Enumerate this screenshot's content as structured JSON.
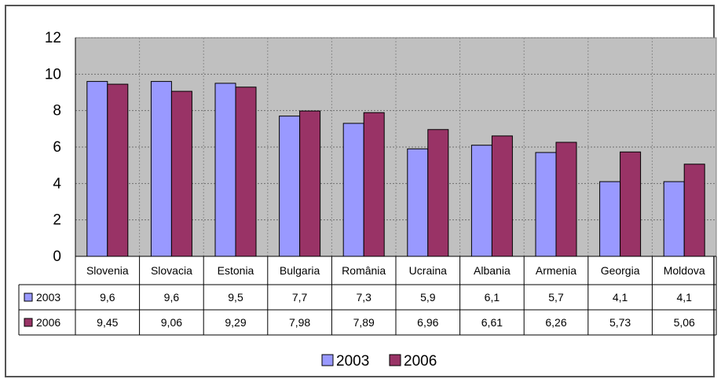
{
  "chart_data": {
    "type": "bar",
    "title": "",
    "xlabel": "",
    "ylabel": "",
    "ylim": [
      0,
      12
    ],
    "yticks": [
      0,
      2,
      4,
      6,
      8,
      10,
      12
    ],
    "grid": true,
    "legend_position": "bottom",
    "categories": [
      "Slovenia",
      "Slovacia",
      "Estonia",
      "Bulgaria",
      "România",
      "Ucraina",
      "Albania",
      "Armenia",
      "Georgia",
      "Moldova"
    ],
    "series": [
      {
        "name": "2003",
        "color": "#9999ff",
        "values": [
          9.6,
          9.6,
          9.5,
          7.7,
          7.3,
          5.9,
          6.1,
          5.7,
          4.1,
          4.1
        ],
        "labels": [
          "9,6",
          "9,6",
          "9,5",
          "7,7",
          "7,3",
          "5,9",
          "6,1",
          "5,7",
          "4,1",
          "4,1"
        ]
      },
      {
        "name": "2006",
        "color": "#993366",
        "values": [
          9.45,
          9.06,
          9.29,
          7.98,
          7.89,
          6.96,
          6.61,
          6.26,
          5.73,
          5.06
        ],
        "labels": [
          "9,45",
          "9,06",
          "9,29",
          "7,98",
          "7,89",
          "6,96",
          "6,61",
          "6,26",
          "5,73",
          "5,06"
        ]
      }
    ],
    "plot_background": "#c0c0c0"
  }
}
